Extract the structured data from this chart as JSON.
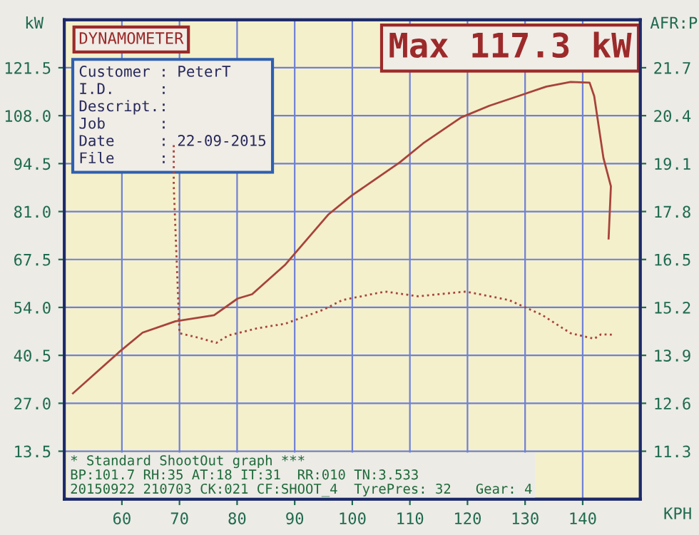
{
  "chart_data": {
    "type": "line",
    "xlabel": "KPH",
    "ylabel": "kW",
    "y2label": "AFR:P",
    "x": [
      51.5,
      59.5,
      63.6,
      69.3,
      76,
      80.1,
      82.6,
      88.4,
      95.8,
      99.9,
      108.2,
      112.3,
      118.9,
      123.8,
      128.8,
      133.7,
      137.9,
      141.2,
      142,
      143.6,
      144.9,
      144.5
    ],
    "series": [
      {
        "name": null,
        "color": "#a8433a",
        "line_style": "solid",
        "values": [
          29.8,
          41.4,
          46.9,
          50.1,
          51.8,
          56.5,
          57.7,
          66.1,
          80.1,
          85.5,
          94.8,
          100.2,
          107.5,
          110.8,
          113.5,
          116.2,
          117.5,
          117.3,
          113.5,
          96.1,
          88.1,
          73.4
        ]
      },
      {
        "name": null,
        "color": "#a8433a",
        "line_style": "dotted",
        "axis": "y2",
        "x": [
          69,
          69,
          70,
          73.5,
          76.4,
          78.5,
          83.4,
          88.4,
          95,
          98.3,
          105.7,
          111.5,
          119.7,
          127.2,
          132.9,
          137.9,
          142,
          143.2,
          145.3
        ],
        "values": [
          19.6,
          18.5,
          14.5,
          14.37,
          14.24,
          14.44,
          14.63,
          14.76,
          15.14,
          15.4,
          15.63,
          15.5,
          15.63,
          15.4,
          15.0,
          14.5,
          14.35,
          14.47,
          14.46
        ]
      }
    ],
    "xlim": [
      50,
      150
    ],
    "xticks": [
      60,
      70,
      80,
      90,
      100,
      110,
      120,
      130,
      140
    ],
    "ylim": [
      0,
      135
    ],
    "yticks": [
      13.5,
      {
        "value": 27,
        "label": "27.0"
      },
      40.5,
      {
        "value": 54,
        "label": "54.0"
      },
      67.5,
      {
        "value": 81,
        "label": "81.0"
      },
      94.5,
      {
        "value": 108,
        "label": "108.0"
      },
      121.5
    ],
    "y2lim": [
      10,
      23
    ],
    "y2ticks": [
      11.3,
      12.6,
      13.9,
      15.2,
      16.5,
      17.8,
      19.1,
      20.4,
      21.7
    ],
    "grid": true,
    "annotations": [
      "Max 117.3 kW",
      "DYNAMOMETER",
      "Customer : PeterT\nI.D.     :\nDescript.:\nJob      :\nDate     : 22-09-2015\nFile     :",
      "* Standard ShootOut graph ***\nBP:101.7 RH:35 AT:18 IT:31  RR:010 TN:3.533\n20150922 210703 CK:021 CF:SHOOT_4  TyrePres: 32   Gear: 4"
    ]
  }
}
